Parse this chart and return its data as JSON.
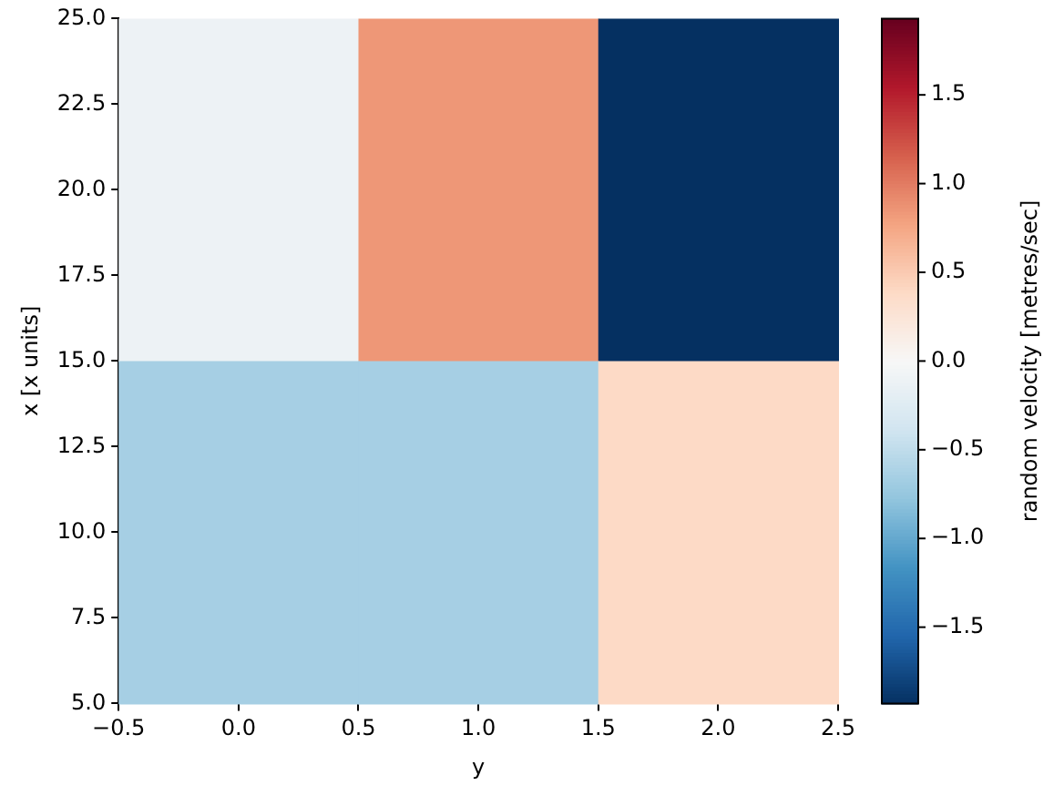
{
  "chart_data": {
    "type": "heatmap",
    "xlabel": "y",
    "ylabel": "x [x units]",
    "clabel": "random velocity [metres/sec]",
    "cells": [
      [
        -0.1,
        0.85,
        -1.93
      ],
      [
        -0.65,
        -0.65,
        0.39
      ]
    ],
    "xlim": [
      -0.5,
      2.5
    ],
    "xticks": [
      {
        "value": -0.5,
        "label": "−0.5"
      },
      {
        "value": 0,
        "label": "0.0"
      },
      {
        "value": 0.5,
        "label": "0.5"
      },
      {
        "value": 1,
        "label": "1.0"
      },
      {
        "value": 1.5,
        "label": "1.5"
      },
      {
        "value": 2,
        "label": "2.0"
      },
      {
        "value": 2.5,
        "label": "2.5"
      }
    ],
    "ylim": [
      5,
      25
    ],
    "yticks": [
      {
        "value": 5,
        "label": "5.0"
      },
      {
        "value": 7.5,
        "label": "7.5"
      },
      {
        "value": 10,
        "label": "10.0"
      },
      {
        "value": 12.5,
        "label": "12.5"
      },
      {
        "value": 15,
        "label": "15.0"
      },
      {
        "value": 17.5,
        "label": "17.5"
      },
      {
        "value": 20,
        "label": "20.0"
      },
      {
        "value": 22.5,
        "label": "22.5"
      },
      {
        "value": 25,
        "label": "25.0"
      }
    ],
    "clim": [
      -1.93,
      1.93
    ],
    "cticks": [
      {
        "value": -1.5,
        "label": "−1.5"
      },
      {
        "value": -1,
        "label": "−1.0"
      },
      {
        "value": -0.5,
        "label": "−0.5"
      },
      {
        "value": 0,
        "label": "0.0"
      },
      {
        "value": 0.5,
        "label": "0.5"
      },
      {
        "value": 1,
        "label": "1.0"
      },
      {
        "value": 1.5,
        "label": "1.5"
      }
    ],
    "grid": false
  }
}
